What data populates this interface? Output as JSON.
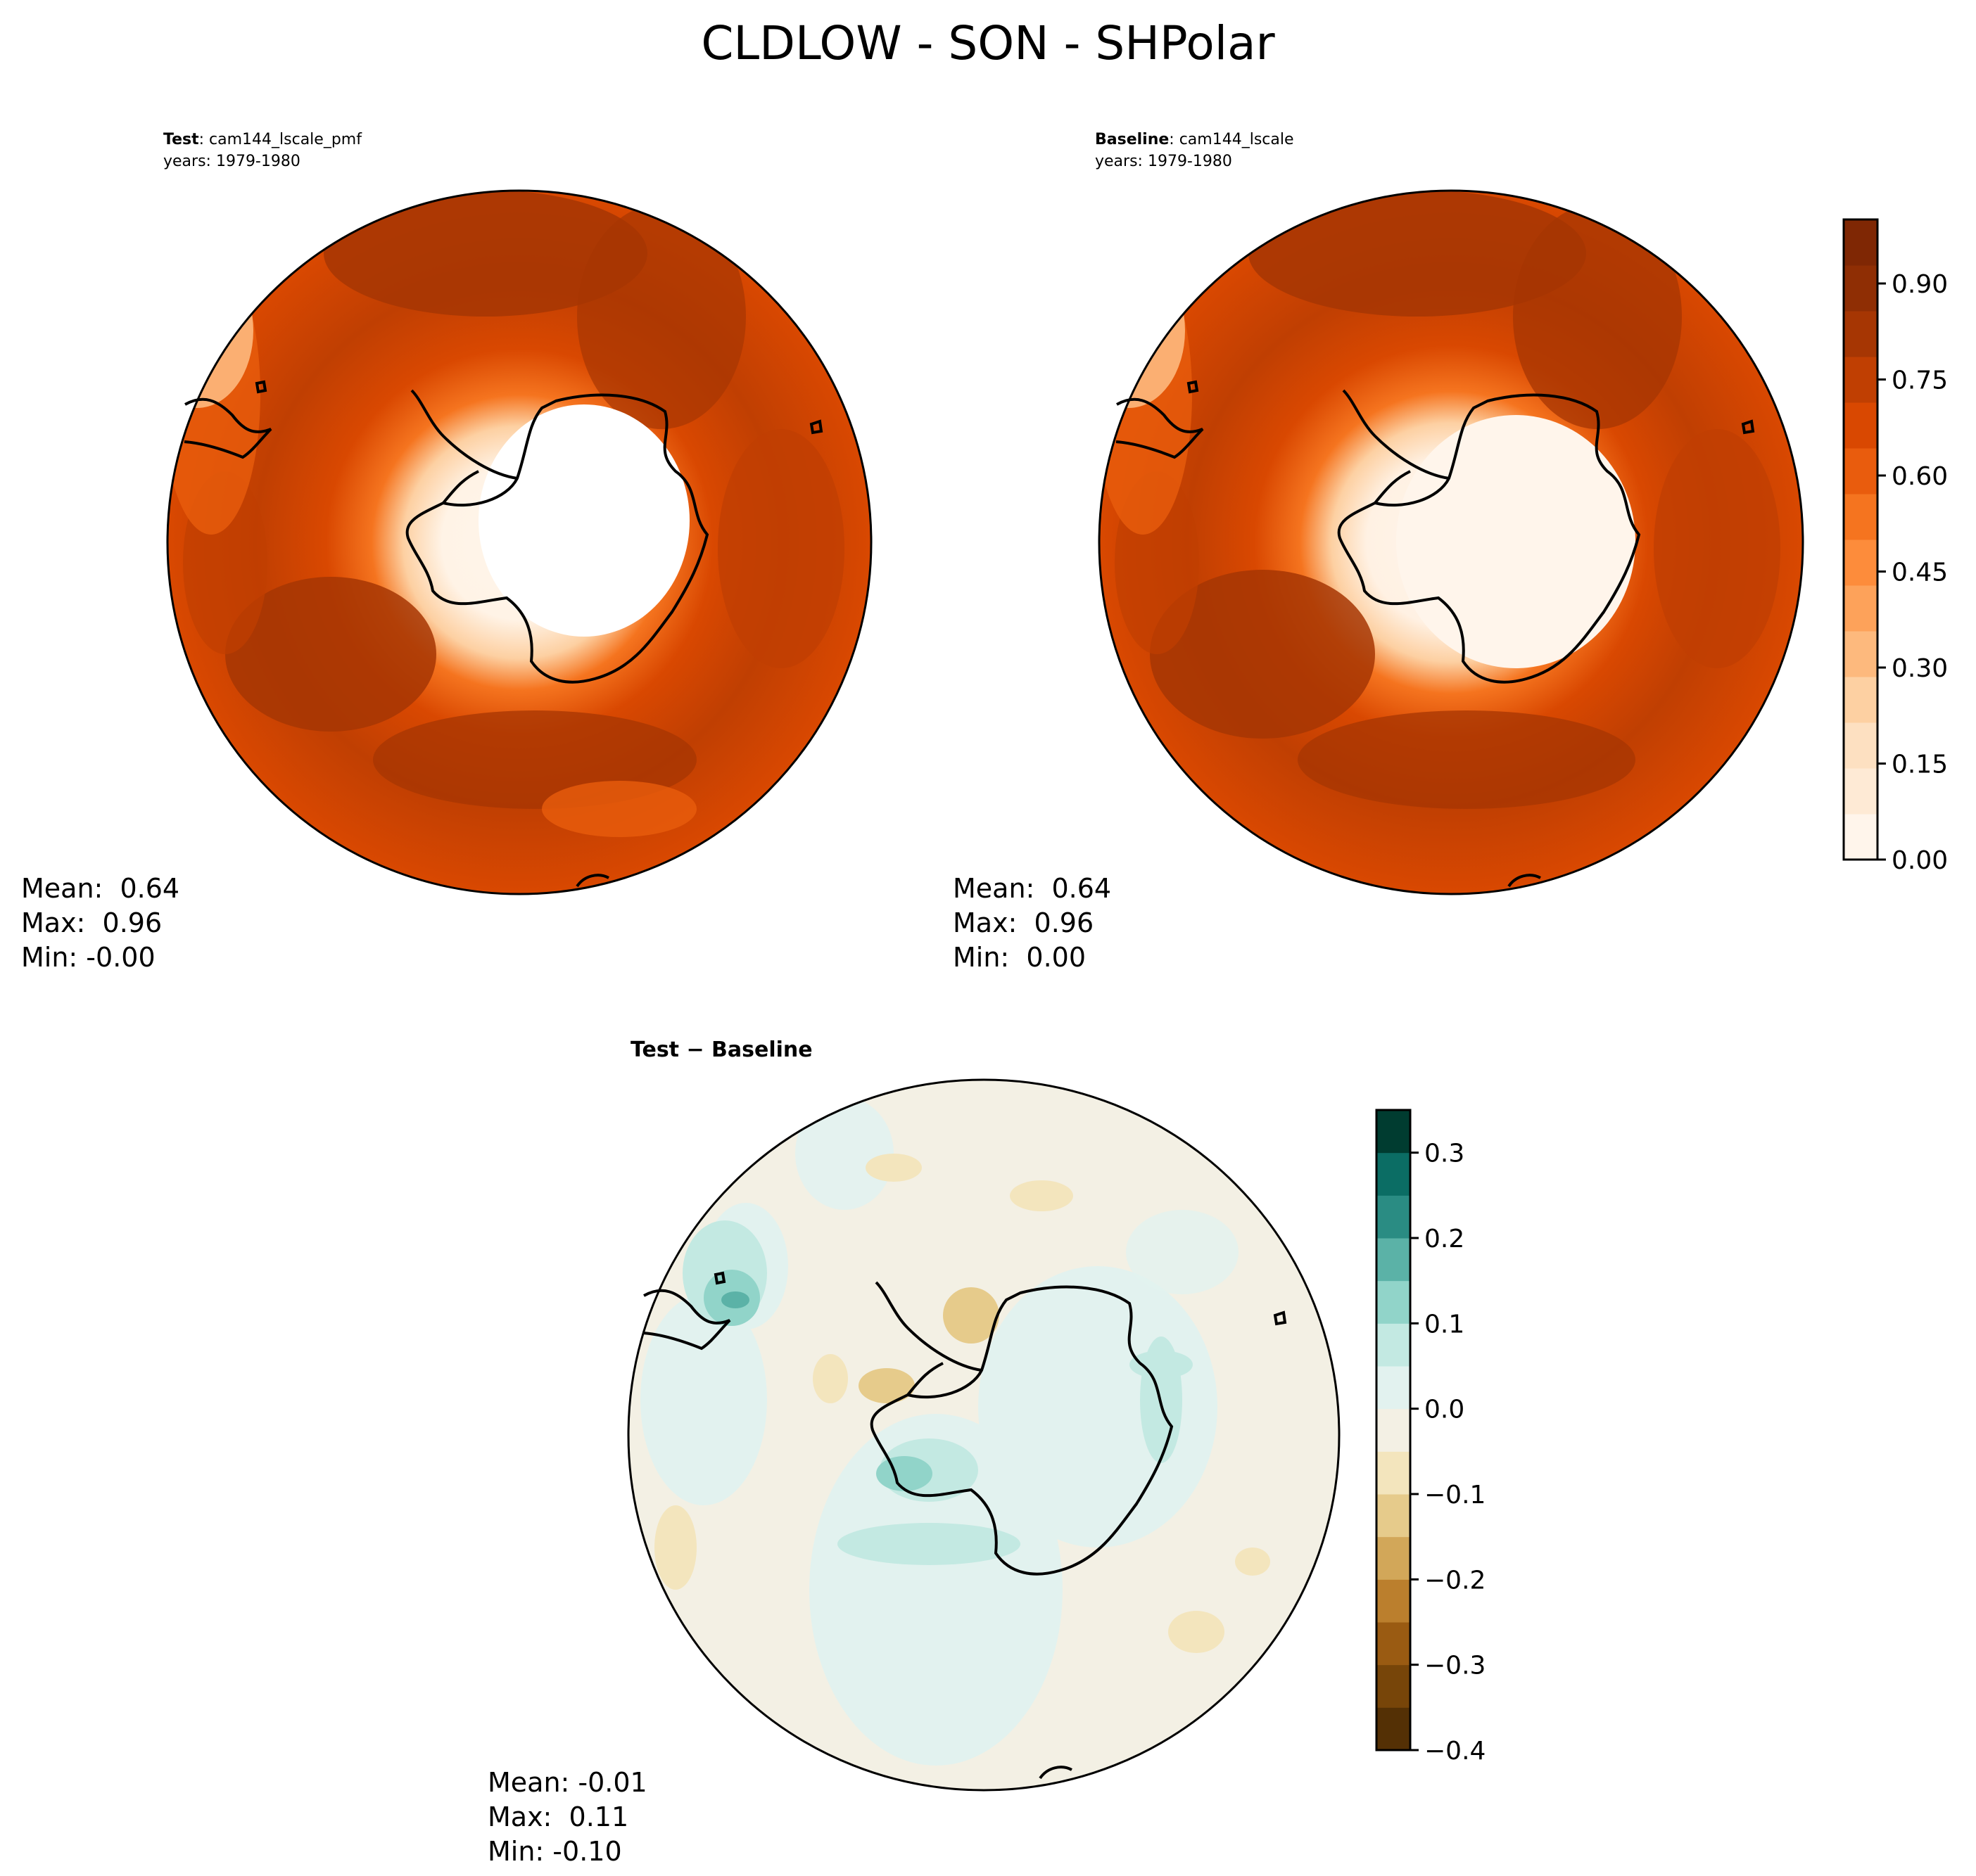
{
  "figure": {
    "title": "CLDLOW - SON - SHPolar"
  },
  "panels": {
    "test": {
      "label_bold": "Test",
      "label_rest": ": cam144_lscale_pmf",
      "years": "years: 1979-1980",
      "stats": [
        "Mean:  0.64",
        "Max:  0.96",
        "Min: -0.00"
      ]
    },
    "baseline": {
      "label_bold": "Baseline",
      "label_rest": ": cam144_lscale",
      "years": "years: 1979-1980",
      "stats": [
        "Mean:  0.64",
        "Max:  0.96",
        "Min:  0.00"
      ]
    },
    "diff": {
      "title": "Test − Baseline",
      "stats": [
        "Mean: -0.01",
        "Max:  0.11",
        "Min: -0.10"
      ]
    }
  },
  "colors": {
    "oranges": [
      "#fff5eb",
      "#feead5",
      "#fde0c1",
      "#fdd0a2",
      "#fdb97d",
      "#fda25a",
      "#fd8c3b",
      "#f5741f",
      "#e95c0d",
      "#d94801",
      "#c03f02",
      "#a63603",
      "#8f2e04",
      "#7f2704"
    ],
    "brbg": [
      "#543005",
      "#774509",
      "#9a5b12",
      "#bb7f2d",
      "#d2a759",
      "#e6cb8b",
      "#f3e5bd",
      "#f3f0e4",
      "#e2f2ef",
      "#c3e9e2",
      "#91d4c9",
      "#5bb2a7",
      "#2a8c83",
      "#0b6d64",
      "#003c30"
    ],
    "coast": "#000000"
  },
  "chart_data": [
    {
      "type": "heatmap",
      "name": "Test",
      "projection": "south polar stereographic",
      "colorbar": {
        "vmin": 0.0,
        "vmax": 1.0,
        "levels": 14,
        "ticks": [
          0.0,
          0.15,
          0.3,
          0.45,
          0.6,
          0.75,
          0.9
        ],
        "tick_labels": [
          "0.00",
          "0.15",
          "0.30",
          "0.45",
          "0.60",
          "0.75",
          "0.90"
        ]
      },
      "mean": 0.64,
      "max": 0.96,
      "min": -0.0
    },
    {
      "type": "heatmap",
      "name": "Baseline",
      "projection": "south polar stereographic",
      "colorbar": {
        "vmin": 0.0,
        "vmax": 1.0,
        "levels": 14,
        "ticks": [
          0.0,
          0.15,
          0.3,
          0.45,
          0.6,
          0.75,
          0.9
        ],
        "tick_labels": [
          "0.00",
          "0.15",
          "0.30",
          "0.45",
          "0.60",
          "0.75",
          "0.90"
        ]
      },
      "mean": 0.64,
      "max": 0.96,
      "min": 0.0
    },
    {
      "type": "heatmap",
      "name": "Test − Baseline",
      "projection": "south polar stereographic",
      "colorbar": {
        "vmin": -0.4,
        "vmax": 0.35,
        "levels": 15,
        "ticks": [
          -0.4,
          -0.3,
          -0.2,
          -0.1,
          0.0,
          0.1,
          0.2,
          0.3
        ],
        "tick_labels": [
          "−0.4",
          "−0.3",
          "−0.2",
          "−0.1",
          "0.0",
          "0.1",
          "0.2",
          "0.3"
        ]
      },
      "mean": -0.01,
      "max": 0.11,
      "min": -0.1
    }
  ]
}
